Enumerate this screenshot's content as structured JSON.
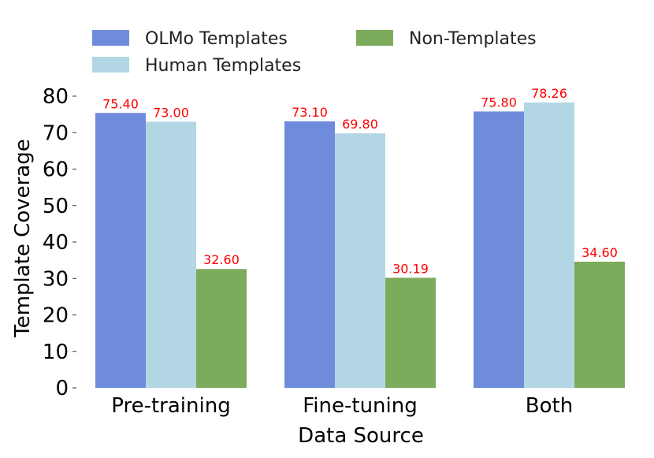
{
  "chart_data": {
    "type": "bar",
    "title": "",
    "xlabel": "Data Source",
    "ylabel": "Template Coverage",
    "categories": [
      "Pre-training",
      "Fine-tuning",
      "Both"
    ],
    "ylim": [
      0,
      80
    ],
    "yticks": [
      0,
      10,
      20,
      30,
      40,
      50,
      60,
      70,
      80
    ],
    "legend_position": "top-left",
    "grid": false,
    "label_color": "#ff0000",
    "series": [
      {
        "name": "OLMo Templates",
        "color": "#6f8bdb",
        "values": [
          75.4,
          73.1,
          75.8
        ],
        "labels": [
          "75.40",
          "73.10",
          "75.80"
        ]
      },
      {
        "name": "Human Templates",
        "color": "#b3d6e5",
        "values": [
          73.0,
          69.8,
          78.26
        ],
        "labels": [
          "73.00",
          "69.80",
          "78.26"
        ]
      },
      {
        "name": "Non-Templates",
        "color": "#7cab5b",
        "values": [
          32.6,
          30.19,
          34.6
        ],
        "labels": [
          "32.60",
          "30.19",
          "34.60"
        ]
      }
    ]
  }
}
